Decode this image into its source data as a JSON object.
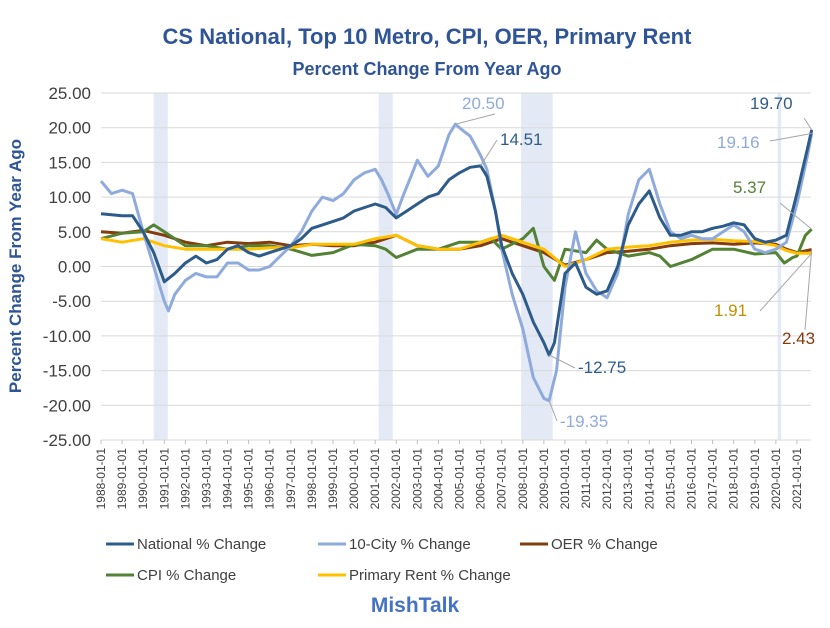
{
  "chart_data": {
    "type": "line",
    "title": "CS National, Top 10 Metro, CPI, OER, Primary Rent",
    "subtitle": "Percent Change From Year Ago",
    "xlabel": "",
    "ylabel": "Percent Change From Year Ago",
    "ylim": [
      -25,
      25
    ],
    "xlim": [
      "1988-01-01",
      "2021-09-01"
    ],
    "y_ticks": [
      "25.00",
      "20.00",
      "15.00",
      "10.00",
      "5.00",
      "0.00",
      "-5.00",
      "-10.00",
      "-15.00",
      "-20.00",
      "-25.00"
    ],
    "x_ticks": [
      "1988-01-01",
      "1989-01-01",
      "1990-01-01",
      "1991-01-01",
      "1992-01-01",
      "1993-01-01",
      "1994-01-01",
      "1995-01-01",
      "1996-01-01",
      "1997-01-01",
      "1998-01-01",
      "1999-01-01",
      "2000-01-01",
      "2001-01-01",
      "2002-01-01",
      "2003-01-01",
      "2004-01-01",
      "2005-01-01",
      "2006-01-01",
      "2007-01-01",
      "2008-01-01",
      "2009-01-01",
      "2010-01-01",
      "2011-01-01",
      "2012-01-01",
      "2013-01-01",
      "2014-01-01",
      "2015-01-01",
      "2016-01-01",
      "2017-01-01",
      "2018-01-01",
      "2019-01-01",
      "2020-01-01",
      "2021-01-01"
    ],
    "grid": true,
    "legend_position": "bottom",
    "recessions": [
      [
        "1990-07-01",
        "1991-03-01"
      ],
      [
        "2001-03-01",
        "2001-11-01"
      ],
      [
        "2007-12-01",
        "2009-06-01"
      ],
      [
        "2020-02-01",
        "2020-04-01"
      ]
    ],
    "series": [
      {
        "name": "National % Change",
        "color": "#2E5C8A",
        "points": [
          [
            1988.0,
            7.6
          ],
          [
            1989.0,
            7.3
          ],
          [
            1989.5,
            7.3
          ],
          [
            1990.0,
            5.0
          ],
          [
            1990.5,
            2.0
          ],
          [
            1991.0,
            -2.2
          ],
          [
            1991.5,
            -1.0
          ],
          [
            1992.0,
            0.5
          ],
          [
            1992.5,
            1.5
          ],
          [
            1993.0,
            0.5
          ],
          [
            1993.5,
            1.0
          ],
          [
            1994.0,
            2.5
          ],
          [
            1994.5,
            3.0
          ],
          [
            1995.0,
            2.0
          ],
          [
            1995.5,
            1.5
          ],
          [
            1996.0,
            2.0
          ],
          [
            1996.5,
            2.5
          ],
          [
            1997.0,
            3.0
          ],
          [
            1997.5,
            4.0
          ],
          [
            1998.0,
            5.5
          ],
          [
            1998.5,
            6.0
          ],
          [
            1999.0,
            6.5
          ],
          [
            1999.5,
            7.0
          ],
          [
            2000.0,
            8.0
          ],
          [
            2000.5,
            8.5
          ],
          [
            2001.0,
            9.0
          ],
          [
            2001.5,
            8.5
          ],
          [
            2002.0,
            7.0
          ],
          [
            2002.5,
            8.0
          ],
          [
            2003.0,
            9.0
          ],
          [
            2003.5,
            10.0
          ],
          [
            2004.0,
            10.5
          ],
          [
            2004.5,
            12.5
          ],
          [
            2005.0,
            13.5
          ],
          [
            2005.5,
            14.3
          ],
          [
            2006.0,
            14.5
          ],
          [
            2006.3,
            13.0
          ],
          [
            2006.7,
            8.0
          ],
          [
            2007.0,
            3.0
          ],
          [
            2007.5,
            -1.0
          ],
          [
            2008.0,
            -4.0
          ],
          [
            2008.5,
            -8.0
          ],
          [
            2009.0,
            -11.0
          ],
          [
            2009.25,
            -12.75
          ],
          [
            2009.5,
            -11.0
          ],
          [
            2010.0,
            -1.0
          ],
          [
            2010.5,
            0.5
          ],
          [
            2011.0,
            -3.0
          ],
          [
            2011.5,
            -4.0
          ],
          [
            2012.0,
            -3.5
          ],
          [
            2012.5,
            0.0
          ],
          [
            2013.0,
            6.0
          ],
          [
            2013.5,
            9.0
          ],
          [
            2014.0,
            10.9
          ],
          [
            2014.5,
            7.0
          ],
          [
            2015.0,
            4.5
          ],
          [
            2015.5,
            4.5
          ],
          [
            2016.0,
            5.0
          ],
          [
            2016.5,
            5.0
          ],
          [
            2017.0,
            5.5
          ],
          [
            2017.5,
            5.8
          ],
          [
            2018.0,
            6.3
          ],
          [
            2018.5,
            6.0
          ],
          [
            2019.0,
            4.0
          ],
          [
            2019.5,
            3.5
          ],
          [
            2020.0,
            3.8
          ],
          [
            2020.5,
            4.5
          ],
          [
            2021.0,
            10.5
          ],
          [
            2021.5,
            17.0
          ],
          [
            2021.7,
            19.7
          ]
        ]
      },
      {
        "name": "10-City % Change",
        "color": "#8FAADC",
        "points": [
          [
            1988.0,
            12.3
          ],
          [
            1988.5,
            10.5
          ],
          [
            1989.0,
            11.0
          ],
          [
            1989.5,
            10.5
          ],
          [
            1990.0,
            5.0
          ],
          [
            1990.5,
            0.0
          ],
          [
            1991.0,
            -5.0
          ],
          [
            1991.2,
            -6.4
          ],
          [
            1991.5,
            -4.0
          ],
          [
            1992.0,
            -2.0
          ],
          [
            1992.5,
            -1.0
          ],
          [
            1993.0,
            -1.5
          ],
          [
            1993.5,
            -1.5
          ],
          [
            1994.0,
            0.5
          ],
          [
            1994.5,
            0.5
          ],
          [
            1995.0,
            -0.5
          ],
          [
            1995.5,
            -0.5
          ],
          [
            1996.0,
            0.0
          ],
          [
            1996.5,
            1.5
          ],
          [
            1997.0,
            3.0
          ],
          [
            1997.5,
            5.0
          ],
          [
            1998.0,
            8.0
          ],
          [
            1998.5,
            10.0
          ],
          [
            1999.0,
            9.5
          ],
          [
            1999.5,
            10.5
          ],
          [
            2000.0,
            12.5
          ],
          [
            2000.5,
            13.5
          ],
          [
            2001.0,
            14.0
          ],
          [
            2001.3,
            12.5
          ],
          [
            2001.6,
            10.5
          ],
          [
            2002.0,
            7.5
          ],
          [
            2002.3,
            10.0
          ],
          [
            2002.7,
            13.0
          ],
          [
            2003.0,
            15.3
          ],
          [
            2003.5,
            13.0
          ],
          [
            2004.0,
            14.5
          ],
          [
            2004.5,
            19.0
          ],
          [
            2004.8,
            20.5
          ],
          [
            2005.2,
            19.5
          ],
          [
            2005.5,
            18.8
          ],
          [
            2006.0,
            16.0
          ],
          [
            2006.3,
            14.0
          ],
          [
            2006.7,
            8.0
          ],
          [
            2007.0,
            2.5
          ],
          [
            2007.5,
            -4.0
          ],
          [
            2008.0,
            -9.0
          ],
          [
            2008.5,
            -16.0
          ],
          [
            2009.0,
            -19.0
          ],
          [
            2009.25,
            -19.35
          ],
          [
            2009.6,
            -15.0
          ],
          [
            2010.0,
            -3.0
          ],
          [
            2010.5,
            5.0
          ],
          [
            2011.0,
            -1.0
          ],
          [
            2011.5,
            -3.5
          ],
          [
            2012.0,
            -4.5
          ],
          [
            2012.5,
            -1.0
          ],
          [
            2013.0,
            7.5
          ],
          [
            2013.5,
            12.5
          ],
          [
            2014.0,
            14.0
          ],
          [
            2014.5,
            9.0
          ],
          [
            2015.0,
            5.0
          ],
          [
            2015.5,
            4.0
          ],
          [
            2016.0,
            4.5
          ],
          [
            2016.5,
            4.0
          ],
          [
            2017.0,
            4.0
          ],
          [
            2017.5,
            5.0
          ],
          [
            2018.0,
            6.0
          ],
          [
            2018.5,
            5.0
          ],
          [
            2019.0,
            2.5
          ],
          [
            2019.5,
            2.0
          ],
          [
            2020.0,
            2.5
          ],
          [
            2020.5,
            3.5
          ],
          [
            2021.0,
            9.0
          ],
          [
            2021.5,
            16.0
          ],
          [
            2021.7,
            19.16
          ]
        ]
      },
      {
        "name": "OER % Change",
        "color": "#843C0C",
        "points": [
          [
            1988.0,
            5.0
          ],
          [
            1989.0,
            4.8
          ],
          [
            1990.0,
            5.2
          ],
          [
            1991.0,
            4.5
          ],
          [
            1992.0,
            3.5
          ],
          [
            1993.0,
            3.0
          ],
          [
            1994.0,
            3.5
          ],
          [
            1995.0,
            3.3
          ],
          [
            1996.0,
            3.5
          ],
          [
            1997.0,
            3.0
          ],
          [
            1998.0,
            3.2
          ],
          [
            1999.0,
            3.0
          ],
          [
            2000.0,
            3.0
          ],
          [
            2001.0,
            3.5
          ],
          [
            2002.0,
            4.5
          ],
          [
            2003.0,
            3.0
          ],
          [
            2004.0,
            2.5
          ],
          [
            2005.0,
            2.5
          ],
          [
            2006.0,
            3.0
          ],
          [
            2007.0,
            4.0
          ],
          [
            2008.0,
            3.0
          ],
          [
            2009.0,
            2.0
          ],
          [
            2010.0,
            0.2
          ],
          [
            2011.0,
            1.0
          ],
          [
            2012.0,
            2.0
          ],
          [
            2013.0,
            2.2
          ],
          [
            2014.0,
            2.5
          ],
          [
            2015.0,
            3.0
          ],
          [
            2016.0,
            3.3
          ],
          [
            2017.0,
            3.4
          ],
          [
            2018.0,
            3.2
          ],
          [
            2019.0,
            3.4
          ],
          [
            2020.0,
            3.2
          ],
          [
            2020.5,
            2.5
          ],
          [
            2021.0,
            2.0
          ],
          [
            2021.7,
            2.43
          ]
        ]
      },
      {
        "name": "CPI % Change",
        "color": "#548235",
        "points": [
          [
            1988.0,
            4.0
          ],
          [
            1989.0,
            4.8
          ],
          [
            1990.0,
            5.0
          ],
          [
            1990.5,
            6.0
          ],
          [
            1991.0,
            5.0
          ],
          [
            1991.5,
            4.0
          ],
          [
            1992.0,
            3.0
          ],
          [
            1993.0,
            3.0
          ],
          [
            1994.0,
            2.5
          ],
          [
            1995.0,
            3.0
          ],
          [
            1996.0,
            3.0
          ],
          [
            1997.0,
            2.5
          ],
          [
            1998.0,
            1.6
          ],
          [
            1999.0,
            2.0
          ],
          [
            2000.0,
            3.2
          ],
          [
            2001.0,
            3.0
          ],
          [
            2001.5,
            2.5
          ],
          [
            2002.0,
            1.3
          ],
          [
            2003.0,
            2.5
          ],
          [
            2004.0,
            2.5
          ],
          [
            2005.0,
            3.5
          ],
          [
            2006.0,
            3.5
          ],
          [
            2006.5,
            4.0
          ],
          [
            2007.0,
            2.5
          ],
          [
            2008.0,
            4.0
          ],
          [
            2008.5,
            5.5
          ],
          [
            2009.0,
            0.0
          ],
          [
            2009.5,
            -2.0
          ],
          [
            2010.0,
            2.5
          ],
          [
            2011.0,
            2.0
          ],
          [
            2011.5,
            3.8
          ],
          [
            2012.0,
            2.5
          ],
          [
            2013.0,
            1.5
          ],
          [
            2014.0,
            2.0
          ],
          [
            2014.5,
            1.5
          ],
          [
            2015.0,
            0.0
          ],
          [
            2016.0,
            1.0
          ],
          [
            2017.0,
            2.5
          ],
          [
            2018.0,
            2.5
          ],
          [
            2019.0,
            1.8
          ],
          [
            2020.0,
            2.0
          ],
          [
            2020.4,
            0.5
          ],
          [
            2020.8,
            1.3
          ],
          [
            2021.0,
            1.5
          ],
          [
            2021.4,
            4.5
          ],
          [
            2021.7,
            5.37
          ]
        ]
      },
      {
        "name": "Primary Rent % Change",
        "color": "#FFC000",
        "points": [
          [
            1988.0,
            4.0
          ],
          [
            1989.0,
            3.5
          ],
          [
            1990.0,
            4.0
          ],
          [
            1991.0,
            3.0
          ],
          [
            1992.0,
            2.5
          ],
          [
            1993.0,
            2.5
          ],
          [
            1994.0,
            2.5
          ],
          [
            1995.0,
            2.5
          ],
          [
            1996.0,
            2.7
          ],
          [
            1997.0,
            2.7
          ],
          [
            1998.0,
            3.2
          ],
          [
            1999.0,
            3.2
          ],
          [
            2000.0,
            3.2
          ],
          [
            2001.0,
            4.0
          ],
          [
            2002.0,
            4.5
          ],
          [
            2003.0,
            3.0
          ],
          [
            2004.0,
            2.5
          ],
          [
            2005.0,
            2.5
          ],
          [
            2006.0,
            3.5
          ],
          [
            2007.0,
            4.5
          ],
          [
            2008.0,
            3.5
          ],
          [
            2009.0,
            2.5
          ],
          [
            2010.0,
            0.0
          ],
          [
            2011.0,
            1.0
          ],
          [
            2012.0,
            2.5
          ],
          [
            2013.0,
            2.8
          ],
          [
            2014.0,
            3.0
          ],
          [
            2015.0,
            3.5
          ],
          [
            2016.0,
            3.8
          ],
          [
            2017.0,
            3.9
          ],
          [
            2018.0,
            3.7
          ],
          [
            2019.0,
            3.6
          ],
          [
            2020.0,
            3.0
          ],
          [
            2020.5,
            2.3
          ],
          [
            2021.0,
            1.9
          ],
          [
            2021.7,
            1.91
          ]
        ]
      }
    ],
    "annotations": [
      {
        "text": "20.50",
        "series": "10-City % Change"
      },
      {
        "text": "14.51",
        "series": "National % Change"
      },
      {
        "text": "19.70",
        "series": "National % Change"
      },
      {
        "text": "19.16",
        "series": "10-City % Change"
      },
      {
        "text": "5.37",
        "series": "CPI % Change"
      },
      {
        "text": "1.91",
        "series": "Primary Rent % Change"
      },
      {
        "text": "2.43",
        "series": "OER % Change"
      },
      {
        "text": "-12.75",
        "series": "National % Change"
      },
      {
        "text": "-19.35",
        "series": "10-City % Change"
      }
    ]
  },
  "brand": "MishTalk"
}
